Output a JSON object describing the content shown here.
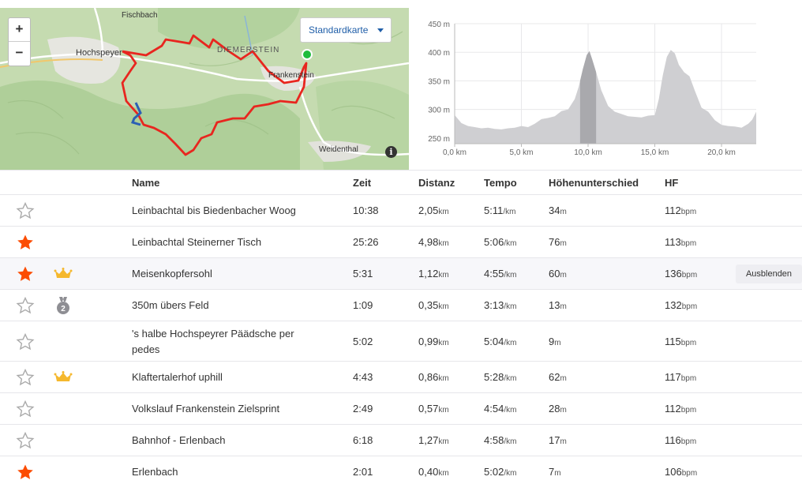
{
  "map": {
    "zoom_in": "+",
    "zoom_out": "−",
    "map_type": "Standardkarte",
    "info": "i",
    "labels": {
      "fischbach": "Fischbach",
      "hochspeyer": "Hochspeyer",
      "diemerstein": "DIEMERSTEIN",
      "frankenstein": "Frankenstein",
      "weidenthal": "Weidenthal"
    },
    "colors": {
      "route": "#e8261f",
      "segment": "#2b5fb4",
      "start": "#1ebc3c"
    }
  },
  "chart_data": {
    "type": "area",
    "ylim": [
      240,
      450
    ],
    "xlim": [
      0,
      22.6
    ],
    "yticks": [
      "450 m",
      "400 m",
      "350 m",
      "300 m",
      "250 m"
    ],
    "ytick_values": [
      450,
      400,
      350,
      300,
      250
    ],
    "xticks": [
      "0,0 km",
      "5,0 km",
      "10,0 km",
      "15,0 km",
      "20,0 km"
    ],
    "xtick_values": [
      0,
      5,
      10,
      15,
      20
    ],
    "highlight_range": [
      9.4,
      10.6
    ],
    "grid": true,
    "x": [
      0,
      0.5,
      1,
      1.5,
      2,
      2.5,
      3,
      3.5,
      4,
      4.5,
      5,
      5.5,
      6,
      6.5,
      7,
      7.5,
      8,
      8.5,
      9,
      9.3,
      9.6,
      9.9,
      10.1,
      10.3,
      10.6,
      11,
      11.5,
      12,
      12.5,
      13,
      13.5,
      14,
      14.5,
      15,
      15.3,
      15.6,
      15.9,
      16.2,
      16.5,
      16.8,
      17.2,
      17.6,
      18,
      18.5,
      19,
      19.5,
      20,
      20.5,
      21,
      21.5,
      22,
      22.3,
      22.6
    ],
    "y": [
      290,
      276,
      271,
      269,
      267,
      268,
      266,
      265,
      267,
      268,
      271,
      269,
      275,
      283,
      285,
      288,
      297,
      300,
      318,
      340,
      370,
      395,
      402,
      388,
      365,
      333,
      306,
      296,
      292,
      288,
      287,
      286,
      289,
      290,
      318,
      360,
      392,
      404,
      398,
      378,
      365,
      358,
      333,
      303,
      296,
      281,
      273,
      271,
      270,
      268,
      275,
      282,
      296
    ],
    "colors": {
      "area": "#cfcfd2",
      "highlight": "#a9a9ad",
      "grid": "#e8e8ea",
      "axis": "#bbbbbb"
    }
  },
  "table": {
    "headers": {
      "name": "Name",
      "time": "Zeit",
      "distance": "Distanz",
      "pace": "Tempo",
      "elev": "Höhenunterschied",
      "hr": "HF"
    },
    "hide_label": "Ausblenden",
    "rows": [
      {
        "star": false,
        "badge": "",
        "name": [
          "Leinbachtal bis Biedenbacher Woog"
        ],
        "time": "10:38",
        "distance": "2,05",
        "distance_unit": "km",
        "pace": "5:11",
        "pace_unit": "/km",
        "elev": "34",
        "elev_unit": "m",
        "hr": "112",
        "hr_unit": "bpm"
      },
      {
        "star": true,
        "badge": "",
        "name": [
          "Leinbachtal Steinerner Tisch"
        ],
        "time": "25:26",
        "distance": "4,98",
        "distance_unit": "km",
        "pace": "5:06",
        "pace_unit": "/km",
        "elev": "76",
        "elev_unit": "m",
        "hr": "113",
        "hr_unit": "bpm"
      },
      {
        "star": true,
        "badge": "crown",
        "name": [
          "Meisenkopfersohl"
        ],
        "time": "5:31",
        "distance": "1,12",
        "distance_unit": "km",
        "pace": "4:55",
        "pace_unit": "/km",
        "elev": "60",
        "elev_unit": "m",
        "hr": "136",
        "hr_unit": "bpm",
        "highlight": true
      },
      {
        "star": false,
        "badge": "medal-2",
        "badge_text": "2",
        "name": [
          "350m übers Feld"
        ],
        "time": "1:09",
        "distance": "0,35",
        "distance_unit": "km",
        "pace": "3:13",
        "pace_unit": "/km",
        "elev": "13",
        "elev_unit": "m",
        "hr": "132",
        "hr_unit": "bpm"
      },
      {
        "star": false,
        "badge": "",
        "name": [
          "'s halbe Hochspeyrer Päädsche per",
          "pedes"
        ],
        "time": "5:02",
        "distance": "0,99",
        "distance_unit": "km",
        "pace": "5:04",
        "pace_unit": "/km",
        "elev": "9",
        "elev_unit": "m",
        "hr": "115",
        "hr_unit": "bpm"
      },
      {
        "star": false,
        "badge": "crown",
        "name": [
          "Klaftertalerhof uphill"
        ],
        "time": "4:43",
        "distance": "0,86",
        "distance_unit": "km",
        "pace": "5:28",
        "pace_unit": "/km",
        "elev": "62",
        "elev_unit": "m",
        "hr": "117",
        "hr_unit": "bpm"
      },
      {
        "star": false,
        "badge": "",
        "name": [
          "Volkslauf Frankenstein Zielsprint"
        ],
        "time": "2:49",
        "distance": "0,57",
        "distance_unit": "km",
        "pace": "4:54",
        "pace_unit": "/km",
        "elev": "28",
        "elev_unit": "m",
        "hr": "112",
        "hr_unit": "bpm"
      },
      {
        "star": false,
        "badge": "",
        "name": [
          "Bahnhof - Erlenbach"
        ],
        "time": "6:18",
        "distance": "1,27",
        "distance_unit": "km",
        "pace": "4:58",
        "pace_unit": "/km",
        "elev": "17",
        "elev_unit": "m",
        "hr": "116",
        "hr_unit": "bpm"
      },
      {
        "star": true,
        "badge": "",
        "name": [
          "Erlenbach"
        ],
        "time": "2:01",
        "distance": "0,40",
        "distance_unit": "km",
        "pace": "5:02",
        "pace_unit": "/km",
        "elev": "7",
        "elev_unit": "m",
        "hr": "106",
        "hr_unit": "bpm"
      }
    ],
    "colors": {
      "star_on": "#fc4c02",
      "star_off": "#aaaaaa",
      "crown": "#f5b82e",
      "medal": "#8e8e93"
    }
  }
}
